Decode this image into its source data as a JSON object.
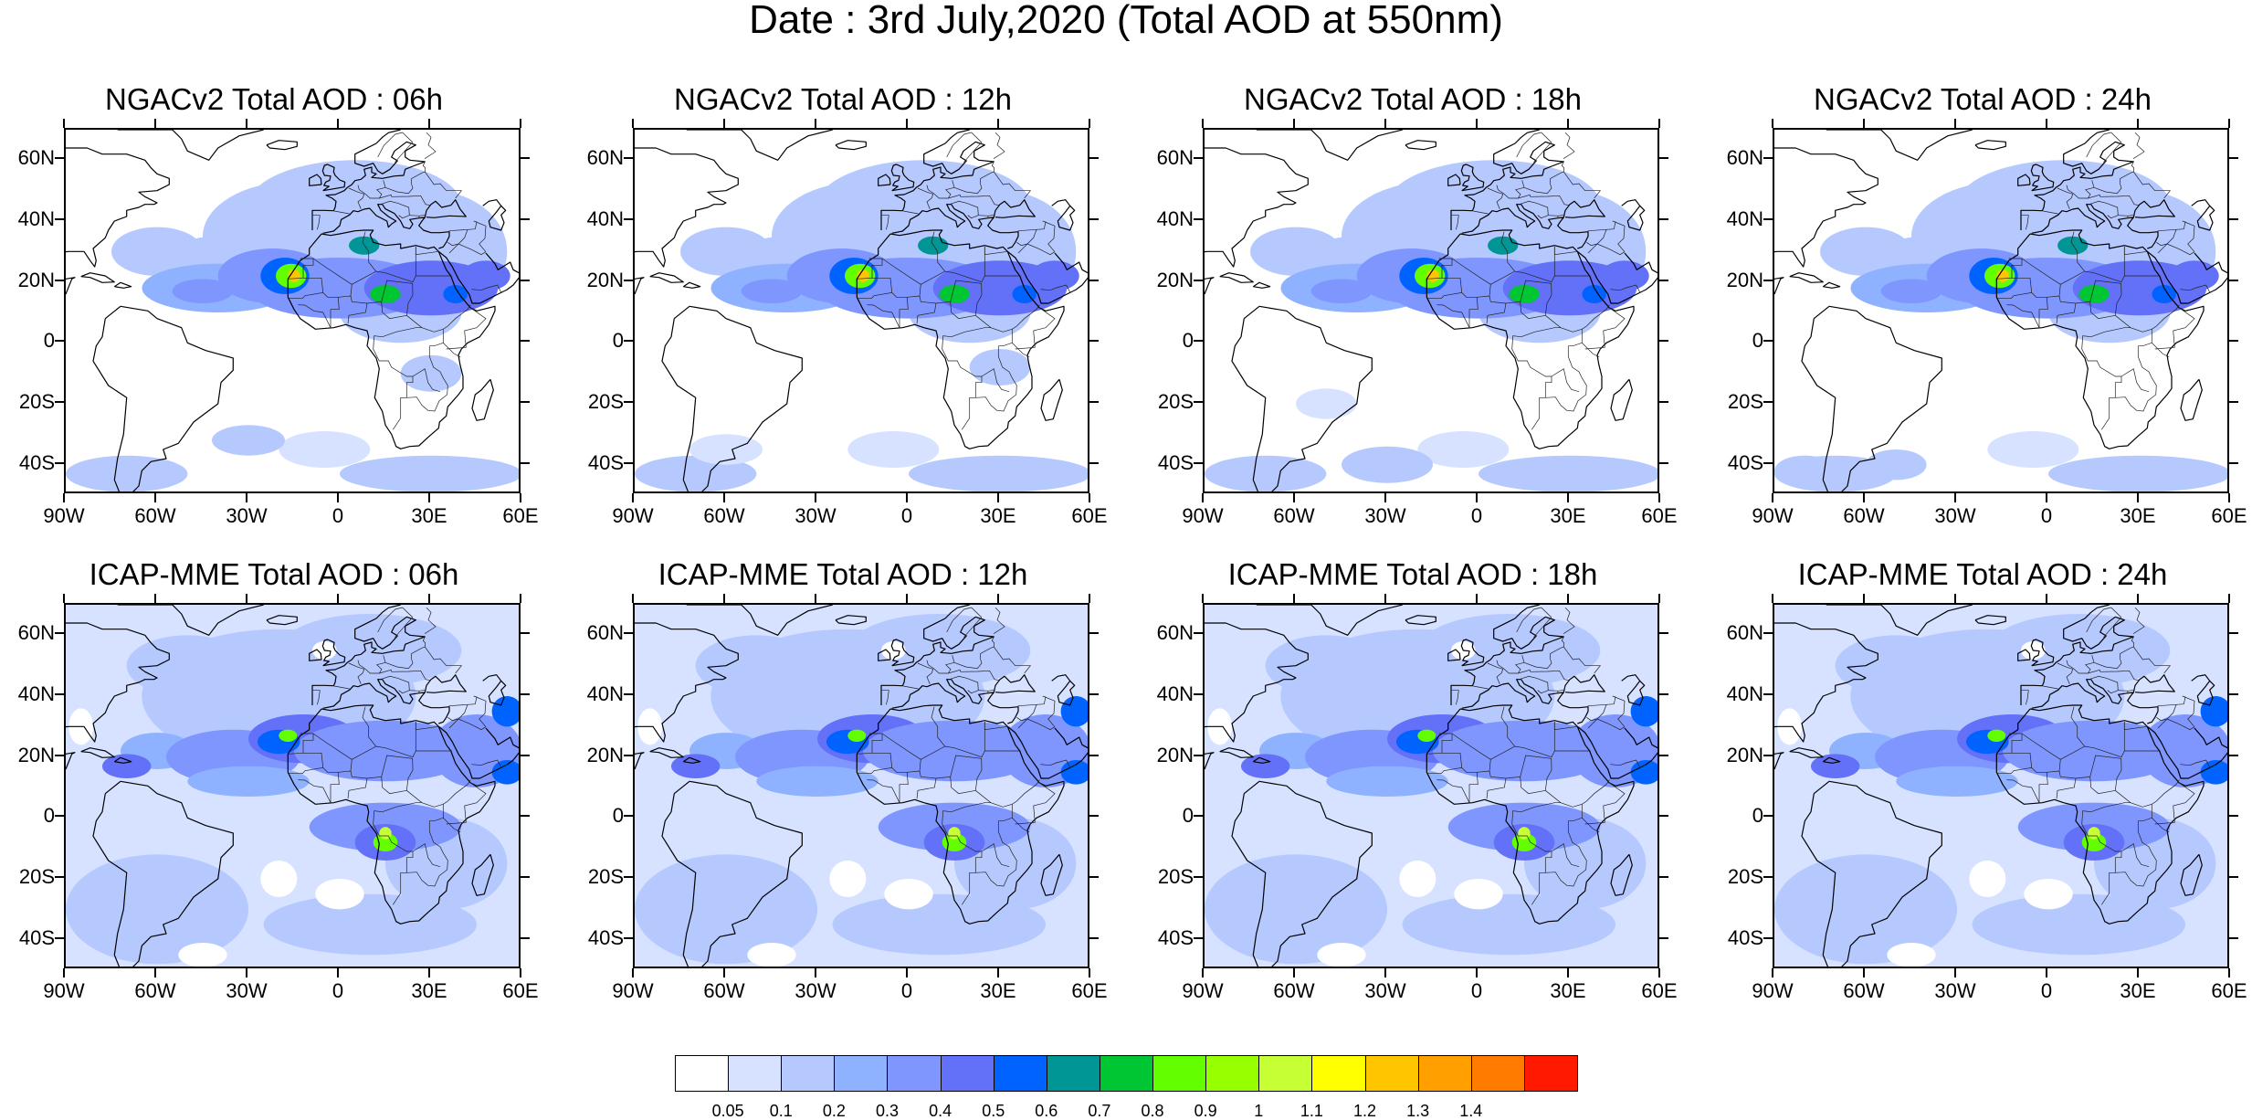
{
  "title": "Date : 3rd July,2020 (Total AOD at 550nm)",
  "panels": [
    {
      "title": "NGACv2 Total AOD : 06h",
      "model": "ngac",
      "hour": "06h"
    },
    {
      "title": "NGACv2 Total AOD : 12h",
      "model": "ngac",
      "hour": "12h"
    },
    {
      "title": "NGACv2 Total AOD : 18h",
      "model": "ngac",
      "hour": "18h"
    },
    {
      "title": "NGACv2 Total AOD : 24h",
      "model": "ngac",
      "hour": "24h"
    },
    {
      "title": "ICAP-MME Total AOD : 06h",
      "model": "icap",
      "hour": "06h"
    },
    {
      "title": "ICAP-MME Total AOD : 12h",
      "model": "icap",
      "hour": "12h"
    },
    {
      "title": "ICAP-MME Total AOD : 18h",
      "model": "icap",
      "hour": "18h"
    },
    {
      "title": "ICAP-MME Total AOD : 24h",
      "model": "icap",
      "hour": "24h"
    }
  ],
  "map_extent": {
    "lon": [
      -90,
      60
    ],
    "lat": [
      -50,
      70
    ]
  },
  "lat_ticks": [
    {
      "value": 60,
      "label": "60N"
    },
    {
      "value": 40,
      "label": "40N"
    },
    {
      "value": 20,
      "label": "20N"
    },
    {
      "value": 0,
      "label": "0"
    },
    {
      "value": -20,
      "label": "20S"
    },
    {
      "value": -40,
      "label": "40S"
    }
  ],
  "lon_ticks": [
    {
      "value": -90,
      "label": "90W"
    },
    {
      "value": -60,
      "label": "60W"
    },
    {
      "value": -30,
      "label": "30W"
    },
    {
      "value": 0,
      "label": "0"
    },
    {
      "value": 30,
      "label": "30E"
    },
    {
      "value": 60,
      "label": "60E"
    }
  ],
  "colorbar": {
    "colors": [
      "#ffffff",
      "#d6e2ff",
      "#b5c9ff",
      "#8eb2ff",
      "#7f96ff",
      "#6370f8",
      "#0063ff",
      "#009696",
      "#00c633",
      "#63ff00",
      "#96ff00",
      "#c6ff33",
      "#ffff00",
      "#ffc600",
      "#ffa000",
      "#ff7c00",
      "#ff1900"
    ],
    "labels": [
      "0.05",
      "0.1",
      "0.2",
      "0.3",
      "0.4",
      "0.5",
      "0.6",
      "0.7",
      "0.8",
      "0.9",
      "1",
      "1.1",
      "1.2",
      "1.3",
      "1.4"
    ]
  }
}
